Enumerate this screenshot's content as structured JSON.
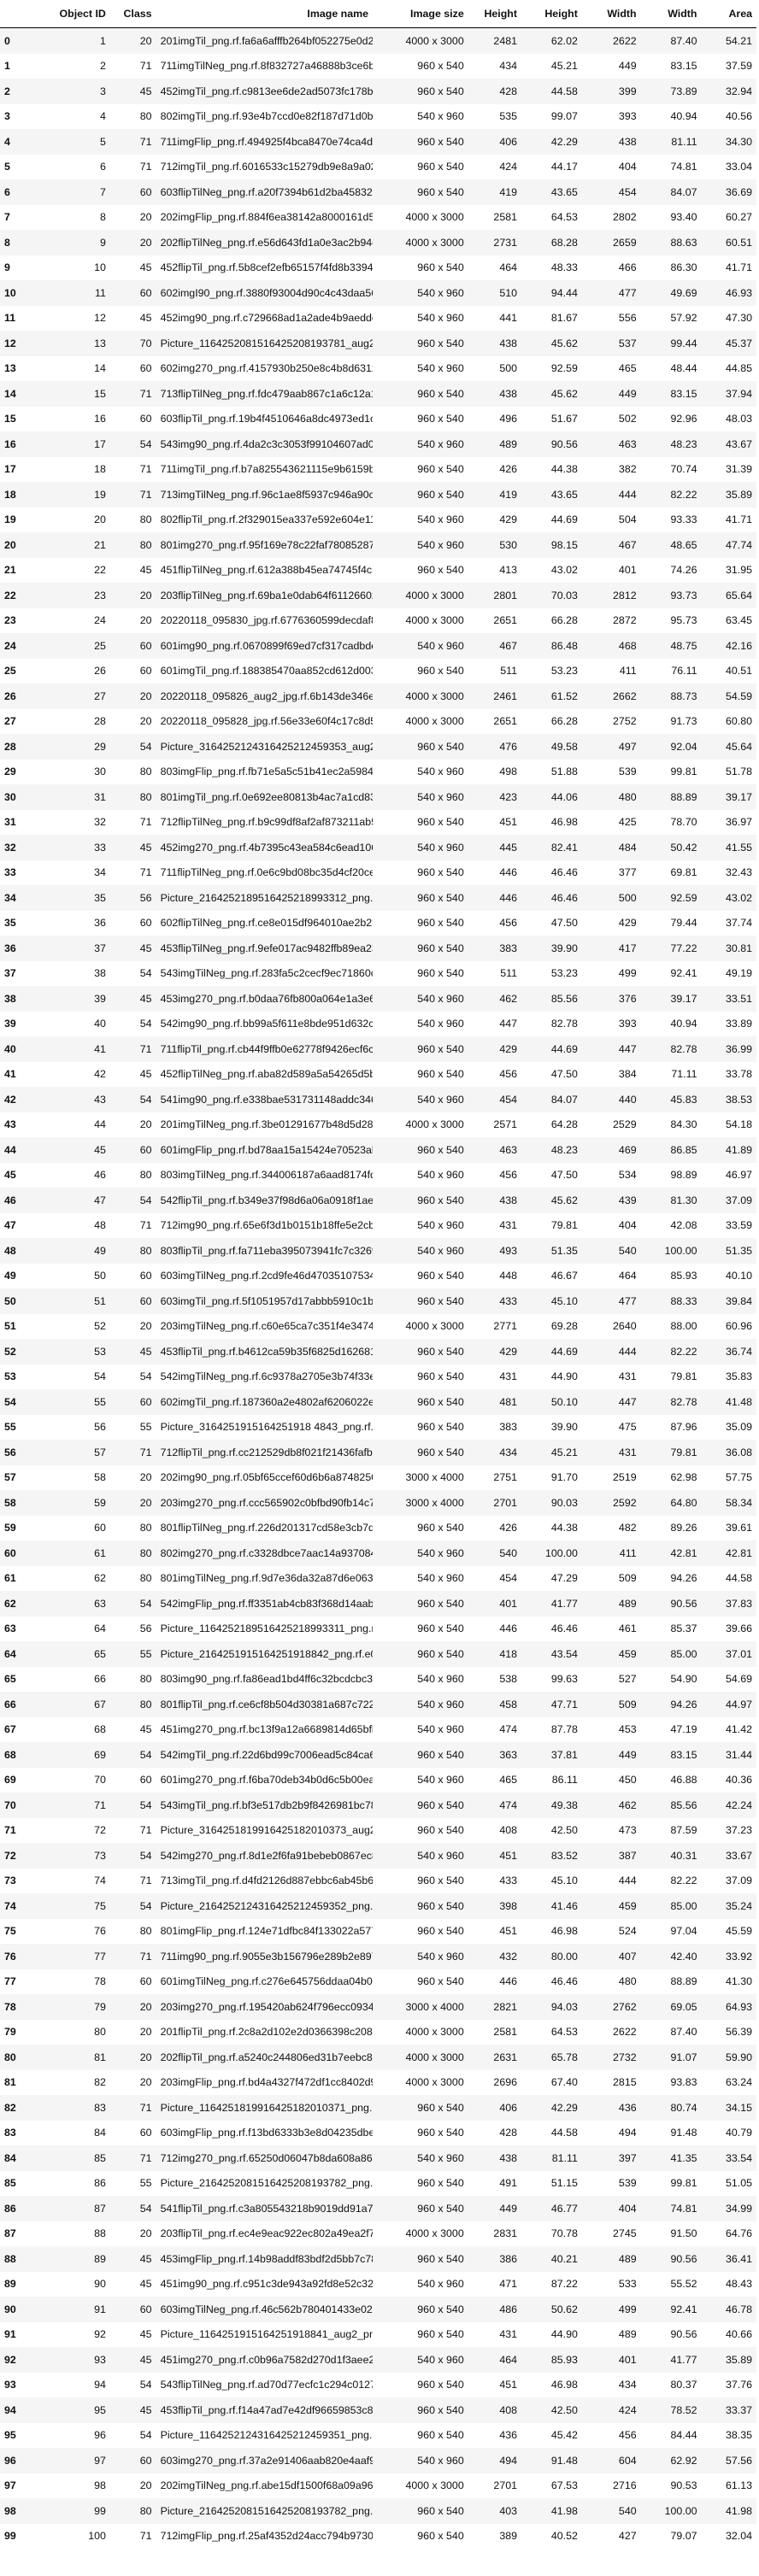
{
  "columns": [
    "",
    "Object ID",
    "Class",
    "Image name",
    "Image size",
    "Height",
    "Height",
    "Width",
    "Width",
    "Area"
  ],
  "rows": [
    [
      "0",
      "1",
      "20",
      "201imgTil_png.rf.fa6a6afffb264bf052275e0d2dc7e...",
      "4000 x 3000",
      "2481",
      "62.02",
      "2622",
      "87.40",
      "54.21"
    ],
    [
      "1",
      "2",
      "71",
      "711imgTilNeg_png.rf.8f832727a46888b3ce6b630f74...",
      "960 x 540",
      "434",
      "45.21",
      "449",
      "83.15",
      "37.59"
    ],
    [
      "2",
      "3",
      "45",
      "452imgTil_png.rf.c9813ee6de2ad5073fc178ba11ef2...",
      "960 x 540",
      "428",
      "44.58",
      "399",
      "73.89",
      "32.94"
    ],
    [
      "3",
      "4",
      "80",
      "802imgTil_png.rf.93e4b7ccd0e82f187d71d0b36b8dcb...",
      "540 x 960",
      "535",
      "99.07",
      "393",
      "40.94",
      "40.56"
    ],
    [
      "4",
      "5",
      "71",
      "711imgFlip_png.rf.494925f4bca8470e74ca4d7584df...",
      "960 x 540",
      "406",
      "42.29",
      "438",
      "81.11",
      "34.30"
    ],
    [
      "5",
      "6",
      "71",
      "712imgTil_png.rf.6016533c15279db9e8a9a02663d64...",
      "960 x 540",
      "424",
      "44.17",
      "404",
      "74.81",
      "33.04"
    ],
    [
      "6",
      "7",
      "60",
      "603flipTilNeg_png.rf.a20f7394b61d2ba4583211b10...",
      "960 x 540",
      "419",
      "43.65",
      "454",
      "84.07",
      "36.69"
    ],
    [
      "7",
      "8",
      "20",
      "202imgFlip_png.rf.884f6ea38142a8000161d50a963f...",
      "4000 x 3000",
      "2581",
      "64.53",
      "2802",
      "93.40",
      "60.27"
    ],
    [
      "8",
      "9",
      "20",
      "202flipTilNeg_png.rf.e56d643fd1a0e3ac2b94cf5a3...",
      "4000 x 3000",
      "2731",
      "68.28",
      "2659",
      "88.63",
      "60.51"
    ],
    [
      "9",
      "10",
      "45",
      "452flipTil_png.rf.5b8cef2efb65157f4fd8b3394e4c...",
      "960 x 540",
      "464",
      "48.33",
      "466",
      "86.30",
      "41.71"
    ],
    [
      "10",
      "11",
      "60",
      "602imgI90_png.rf.3880f93004d90c4c43daa568e23ad3...",
      "540 x 960",
      "510",
      "94.44",
      "477",
      "49.69",
      "46.93"
    ],
    [
      "11",
      "12",
      "45",
      "452img90_png.rf.c729668ad1a2ade4b9aedde653c778...",
      "540 x 960",
      "441",
      "81.67",
      "556",
      "57.92",
      "47.30"
    ],
    [
      "12",
      "13",
      "70",
      "Picture_1164252081516425208193781_aug2_png.rf...",
      "960 x 540",
      "438",
      "45.62",
      "537",
      "99.44",
      "45.37"
    ],
    [
      "13",
      "14",
      "60",
      "602img270_png.rf.4157930b250e8c4b8d63123147aaa...",
      "540 x 960",
      "500",
      "92.59",
      "465",
      "48.44",
      "44.85"
    ],
    [
      "14",
      "15",
      "71",
      "713flipTilNeg_png.rf.fdc479aab867c1a6c12a1f246...",
      "960 x 540",
      "438",
      "45.62",
      "449",
      "83.15",
      "37.94"
    ],
    [
      "15",
      "16",
      "60",
      "603flipTil_png.rf.19b4f4510646a8dc4973ed1c35eb...",
      "960 x 540",
      "496",
      "51.67",
      "502",
      "92.96",
      "48.03"
    ],
    [
      "16",
      "17",
      "54",
      "543img90_png.rf.4da2c3c3053f99104607ad0ed8f693...",
      "540 x 960",
      "489",
      "90.56",
      "463",
      "48.23",
      "43.67"
    ],
    [
      "17",
      "18",
      "71",
      "711imgTil_png.rf.b7a825543621115e9b6159b4021e4...",
      "960 x 540",
      "426",
      "44.38",
      "382",
      "70.74",
      "31.39"
    ],
    [
      "18",
      "19",
      "71",
      "713imgTilNeg_png.rf.96c1ae8f5937c946a90cf8d4b1...",
      "960 x 540",
      "419",
      "43.65",
      "444",
      "82.22",
      "35.89"
    ],
    [
      "19",
      "20",
      "80",
      "802flipTil_png.rf.2f329015ea337e592e604e11242f...",
      "540 x 960",
      "429",
      "44.69",
      "504",
      "93.33",
      "41.71"
    ],
    [
      "20",
      "21",
      "80",
      "801img270_png.rf.95f169e78c22faf780852870313c7...",
      "540 x 960",
      "530",
      "98.15",
      "467",
      "48.65",
      "47.74"
    ],
    [
      "21",
      "22",
      "45",
      "451flipTilNeg_png.rf.612a388b45ea74745f4cb5ea7...",
      "960 x 540",
      "413",
      "43.02",
      "401",
      "74.26",
      "31.95"
    ],
    [
      "22",
      "23",
      "20",
      "203flipTilNeg_png.rf.69ba1e0dab64f61126602e37f...",
      "4000 x 3000",
      "2801",
      "70.03",
      "2812",
      "93.73",
      "65.64"
    ],
    [
      "23",
      "24",
      "20",
      "20220118_095830_jpg.rf.6776360599decdaf8a1d0d7...",
      "4000 x 3000",
      "2651",
      "66.28",
      "2872",
      "95.73",
      "63.45"
    ],
    [
      "24",
      "25",
      "60",
      "601img90_png.rf.0670899f69ed7cf317cadbde6227fb...",
      "540 x 960",
      "467",
      "86.48",
      "468",
      "48.75",
      "42.16"
    ],
    [
      "25",
      "26",
      "60",
      "601imgTil_png.rf.188385470aa852cd612d003e22b14...",
      "960 x 540",
      "511",
      "53.23",
      "411",
      "76.11",
      "40.51"
    ],
    [
      "26",
      "27",
      "20",
      "20220118_095826_aug2_jpg.rf.6b143de346edc1e760...",
      "4000 x 3000",
      "2461",
      "61.52",
      "2662",
      "88.73",
      "54.59"
    ],
    [
      "27",
      "28",
      "20",
      "20220118_095828_jpg.rf.56e33e60f4c17c8d5fb4a0b...",
      "4000 x 3000",
      "2651",
      "66.28",
      "2752",
      "91.73",
      "60.80"
    ],
    [
      "28",
      "29",
      "54",
      "Picture_3164252124316425212459353_aug2_png.rf...",
      "960 x 540",
      "476",
      "49.58",
      "497",
      "92.04",
      "45.64"
    ],
    [
      "29",
      "30",
      "80",
      "803imgFlip_png.rf.fb71e5a5c51b41ec2a598403aedd...",
      "540 x 960",
      "498",
      "51.88",
      "539",
      "99.81",
      "51.78"
    ],
    [
      "30",
      "31",
      "80",
      "801imgTil_png.rf.0e692ee80813b4ac7a1cd8345b34e...",
      "540 x 960",
      "423",
      "44.06",
      "480",
      "88.89",
      "39.17"
    ],
    [
      "31",
      "32",
      "71",
      "712flipTilNeg_png.rf.b9c99df8af2af873211ab58fe...",
      "960 x 540",
      "451",
      "46.98",
      "425",
      "78.70",
      "36.97"
    ],
    [
      "32",
      "33",
      "45",
      "452img270_png.rf.4b7395c43ea584c6ead1069970eb0...",
      "540 x 960",
      "445",
      "82.41",
      "484",
      "50.42",
      "41.55"
    ],
    [
      "33",
      "34",
      "71",
      "711flipTilNeg_png.rf.0e6c9bd08bc35d4cf20ce439f...",
      "960 x 540",
      "446",
      "46.46",
      "377",
      "69.81",
      "32.43"
    ],
    [
      "34",
      "35",
      "56",
      "Picture_2164252189516425218993312_png.rf.24deb...",
      "960 x 540",
      "446",
      "46.46",
      "500",
      "92.59",
      "43.02"
    ],
    [
      "35",
      "36",
      "60",
      "602flipTilNeg_png.rf.ce8e015df964010ae2b2b354c...",
      "960 x 540",
      "456",
      "47.50",
      "429",
      "79.44",
      "37.74"
    ],
    [
      "36",
      "37",
      "45",
      "453flipTilNeg_png.rf.9efe017ac9482ffb89ea23494...",
      "960 x 540",
      "383",
      "39.90",
      "417",
      "77.22",
      "30.81"
    ],
    [
      "37",
      "38",
      "54",
      "543imgTilNeg_png.rf.283fa5c2cecf9ec71860c5a7ed...",
      "960 x 540",
      "511",
      "53.23",
      "499",
      "92.41",
      "49.19"
    ],
    [
      "38",
      "39",
      "45",
      "453img270_png.rf.b0daa76fb800a064e1a3e66be6503...",
      "540 x 960",
      "462",
      "85.56",
      "376",
      "39.17",
      "33.51"
    ],
    [
      "39",
      "40",
      "54",
      "542img90_png.rf.bb99a5f611e8bde951d632c9caf9e1...",
      "540 x 960",
      "447",
      "82.78",
      "393",
      "40.94",
      "33.89"
    ],
    [
      "40",
      "41",
      "71",
      "711flipTil_png.rf.cb44f9ffb0e62778f9426ecf6ce8...",
      "960 x 540",
      "429",
      "44.69",
      "447",
      "82.78",
      "36.99"
    ],
    [
      "41",
      "42",
      "45",
      "452flipTilNeg_png.rf.aba82d589a5a54265d5bbd2f9...",
      "960 x 540",
      "456",
      "47.50",
      "384",
      "71.11",
      "33.78"
    ],
    [
      "42",
      "43",
      "54",
      "541img90_png.rf.e338bae531731148addc346a11bc7e...",
      "540 x 960",
      "454",
      "84.07",
      "440",
      "45.83",
      "38.53"
    ],
    [
      "43",
      "44",
      "20",
      "201imgTilNeg_png.rf.3be01291677b48d5d282bcb85d...",
      "4000 x 3000",
      "2571",
      "64.28",
      "2529",
      "84.30",
      "54.18"
    ],
    [
      "44",
      "45",
      "60",
      "601imgFlip_png.rf.bd78aa15a15424e70523abc2dcbf...",
      "960 x 540",
      "463",
      "48.23",
      "469",
      "86.85",
      "41.89"
    ],
    [
      "45",
      "46",
      "80",
      "803imgTilNeg_png.rf.344006187a6aad8174fd45c2c7...",
      "540 x 960",
      "456",
      "47.50",
      "534",
      "98.89",
      "46.97"
    ],
    [
      "46",
      "47",
      "54",
      "542flipTil_png.rf.b349e37f98d6a06a0918f1aebcb...",
      "960 x 540",
      "438",
      "45.62",
      "439",
      "81.30",
      "37.09"
    ],
    [
      "47",
      "48",
      "71",
      "712img90_png.rf.65e6f3d1b0151b18ffe5e2cbf1071f...",
      "540 x 960",
      "431",
      "79.81",
      "404",
      "42.08",
      "33.59"
    ],
    [
      "48",
      "49",
      "80",
      "803flipTil_png.rf.fa711eba395073941fc7c3269496...",
      "540 x 960",
      "493",
      "51.35",
      "540",
      "100.00",
      "51.35"
    ],
    [
      "49",
      "50",
      "60",
      "603imgTilNeg_png.rf.2cd9fe46d4703510753422S279...",
      "960 x 540",
      "448",
      "46.67",
      "464",
      "85.93",
      "40.10"
    ],
    [
      "50",
      "51",
      "60",
      "603imgTil_png.rf.5f1051957d17abbb5910c1b8f4204...",
      "960 x 540",
      "433",
      "45.10",
      "477",
      "88.33",
      "39.84"
    ],
    [
      "51",
      "52",
      "20",
      "203imgTilNeg_png.rf.c60e65ca7c351f4e34745c8b2f...",
      "4000 x 3000",
      "2771",
      "69.28",
      "2640",
      "88.00",
      "60.96"
    ],
    [
      "52",
      "53",
      "45",
      "453flipTil_png.rf.b4612ca59b35f6825d1626815062...",
      "960 x 540",
      "429",
      "44.69",
      "444",
      "82.22",
      "36.74"
    ],
    [
      "53",
      "54",
      "54",
      "542imgTilNeg_png.rf.6c9378a2705e3b74f33e79d5089...",
      "960 x 540",
      "431",
      "44.90",
      "431",
      "79.81",
      "35.83"
    ],
    [
      "54",
      "55",
      "60",
      "602imgTil_png.rf.187360a2e4802af6206022e204fbf...",
      "960 x 540",
      "481",
      "50.10",
      "447",
      "82.78",
      "41.48"
    ],
    [
      "55",
      "56",
      "55",
      "Picture_3164251915164251918 4843_png.rf.90d10...",
      "960 x 540",
      "383",
      "39.90",
      "475",
      "87.96",
      "35.09"
    ],
    [
      "56",
      "57",
      "71",
      "712flipTil_png.rf.cc212529db8f021f21436fafbd02...",
      "960 x 540",
      "434",
      "45.21",
      "431",
      "79.81",
      "36.08"
    ],
    [
      "57",
      "58",
      "20",
      "202img90_png.rf.05bf65ccef60d6b6a874825033ec5c...",
      "3000 x 4000",
      "2751",
      "91.70",
      "2519",
      "62.98",
      "57.75"
    ],
    [
      "58",
      "59",
      "20",
      "203img270_png.rf.ccc565902c0bfbd90fb14c766f2ad...",
      "3000 x 4000",
      "2701",
      "90.03",
      "2592",
      "64.80",
      "58.34"
    ],
    [
      "59",
      "60",
      "80",
      "801flipTilNeg_png.rf.226d201317cd58e3cb7d27af1...",
      "960 x 540",
      "426",
      "44.38",
      "482",
      "89.26",
      "39.61"
    ],
    [
      "60",
      "61",
      "80",
      "802img270_png.rf.c3328dbce7aac14a937084cf481a8...",
      "540 x 960",
      "540",
      "100.00",
      "411",
      "42.81",
      "42.81"
    ],
    [
      "61",
      "62",
      "80",
      "801imgTilNeg_png.rf.9d7e36da32a87d6e06369bf651...",
      "540 x 960",
      "454",
      "47.29",
      "509",
      "94.26",
      "44.58"
    ],
    [
      "62",
      "63",
      "54",
      "542imgFlip_png.rf.ff3351ab4cb83f368d14aabf9e52...",
      "960 x 540",
      "401",
      "41.77",
      "489",
      "90.56",
      "37.83"
    ],
    [
      "63",
      "64",
      "56",
      "Picture_1164252189516425218993311_png.rf.b77e2...",
      "960 x 540",
      "446",
      "46.46",
      "461",
      "85.37",
      "39.66"
    ],
    [
      "64",
      "65",
      "55",
      "Picture_2164251915164251918842_png.rf.e07b8...",
      "960 x 540",
      "418",
      "43.54",
      "459",
      "85.00",
      "37.01"
    ],
    [
      "65",
      "66",
      "80",
      "803img90_png.rf.fa86ead1bd4ff6c32bcdcbc3cf69ae...",
      "540 x 960",
      "538",
      "99.63",
      "527",
      "54.90",
      "54.69"
    ],
    [
      "66",
      "67",
      "80",
      "801flipTil_png.rf.ce6cf8b504d30381a687c7221344...",
      "540 x 960",
      "458",
      "47.71",
      "509",
      "94.26",
      "44.97"
    ],
    [
      "67",
      "68",
      "45",
      "451img270_png.rf.bc13f9a12a6689814d65bfb3a8be0...",
      "540 x 960",
      "474",
      "87.78",
      "453",
      "47.19",
      "41.42"
    ],
    [
      "68",
      "69",
      "54",
      "542imgTil_png.rf.22d6bd99c7006ead5c84ca6497753...",
      "960 x 540",
      "363",
      "37.81",
      "449",
      "83.15",
      "31.44"
    ],
    [
      "69",
      "70",
      "60",
      "601img270_png.rf.f6ba70deb34b0d6c5b00eab826d00...",
      "540 x 960",
      "465",
      "86.11",
      "450",
      "46.88",
      "40.36"
    ],
    [
      "70",
      "71",
      "54",
      "543imgTil_png.rf.bf3e517db2b9f8426981bc78be0df...",
      "960 x 540",
      "474",
      "49.38",
      "462",
      "85.56",
      "42.24"
    ],
    [
      "71",
      "72",
      "71",
      "Picture_3164251819916425182010373_aug2_png.rf...",
      "960 x 540",
      "408",
      "42.50",
      "473",
      "87.59",
      "37.23"
    ],
    [
      "72",
      "73",
      "54",
      "542img270_png.rf.8d1e2f6fa91bebeb0867ec8eb95c2...",
      "540 x 960",
      "451",
      "83.52",
      "387",
      "40.31",
      "33.67"
    ],
    [
      "73",
      "74",
      "71",
      "713imgTil_png.rf.d4fd2126d887ebbc6ab45b61e3f9b...",
      "960 x 540",
      "433",
      "45.10",
      "444",
      "82.22",
      "37.09"
    ],
    [
      "74",
      "75",
      "54",
      "Picture_2164252124316425212459352_png.rf.9e7e8...",
      "960 x 540",
      "398",
      "41.46",
      "459",
      "85.00",
      "35.24"
    ],
    [
      "75",
      "76",
      "80",
      "801imgFlip_png.rf.124e71dfbc84f133022a57779af8...",
      "960 x 540",
      "451",
      "46.98",
      "524",
      "97.04",
      "45.59"
    ],
    [
      "76",
      "77",
      "71",
      "711img90_png.rf.9055e3b156796e289b2e8979aa8f1f...",
      "540 x 960",
      "432",
      "80.00",
      "407",
      "42.40",
      "33.92"
    ],
    [
      "77",
      "78",
      "60",
      "601imgTilNeg_png.rf.c276e645756ddaa04b0d088f30...",
      "960 x 540",
      "446",
      "46.46",
      "480",
      "88.89",
      "41.30"
    ],
    [
      "78",
      "79",
      "20",
      "203img270_png.rf.195420ab624f796ecc0934458594c...",
      "3000 x 4000",
      "2821",
      "94.03",
      "2762",
      "69.05",
      "64.93"
    ],
    [
      "79",
      "80",
      "20",
      "201flipTil_png.rf.2c8a2d102e2d0366398c208d61ea...",
      "4000 x 3000",
      "2581",
      "64.53",
      "2622",
      "87.40",
      "56.39"
    ],
    [
      "80",
      "81",
      "20",
      "202flipTil_png.rf.a5240c244806ed31b7eebc8fe2b3...",
      "4000 x 3000",
      "2631",
      "65.78",
      "2732",
      "91.07",
      "59.90"
    ],
    [
      "81",
      "82",
      "20",
      "203imgFlip_png.rf.bd4a4327f472df1cc8402d9e6e7f...",
      "4000 x 3000",
      "2696",
      "67.40",
      "2815",
      "93.83",
      "63.24"
    ],
    [
      "82",
      "83",
      "71",
      "Picture_1164251819916425182010371_png.rf.5aa7b...",
      "960 x 540",
      "406",
      "42.29",
      "436",
      "80.74",
      "34.15"
    ],
    [
      "83",
      "84",
      "60",
      "603imgFlip_png.rf.f13bd6333b3e8d04235dbe619f95...",
      "960 x 540",
      "428",
      "44.58",
      "494",
      "91.48",
      "40.79"
    ],
    [
      "84",
      "85",
      "71",
      "712img270_png.rf.65250d06047b8da608a86ccce a361...",
      "540 x 960",
      "438",
      "81.11",
      "397",
      "41.35",
      "33.54"
    ],
    [
      "85",
      "86",
      "55",
      "Picture_2164252081516425208193782_png.rf.2f9b7...",
      "960 x 540",
      "491",
      "51.15",
      "539",
      "99.81",
      "51.05"
    ],
    [
      "86",
      "87",
      "54",
      "541flipTil_png.rf.c3a805543218b9019dd91a7fd4f1...",
      "960 x 540",
      "449",
      "46.77",
      "404",
      "74.81",
      "34.99"
    ],
    [
      "87",
      "88",
      "20",
      "203flipTil_png.rf.ec4e9eac922ec802a49ea2f7bb88...",
      "4000 x 3000",
      "2831",
      "70.78",
      "2745",
      "91.50",
      "64.76"
    ],
    [
      "88",
      "89",
      "45",
      "453imgFlip_png.rf.14b98addf83bdf2d5bb7c78f3158...",
      "960 x 540",
      "386",
      "40.21",
      "489",
      "90.56",
      "36.41"
    ],
    [
      "89",
      "90",
      "45",
      "451img90_png.rf.c951c3de943a92fd8e52c32d6fd65e...",
      "540 x 960",
      "471",
      "87.22",
      "533",
      "55.52",
      "48.43"
    ],
    [
      "90",
      "91",
      "60",
      "603imgTilNeg_png.rf.46c562b780401433e029bb7ea5...",
      "960 x 540",
      "486",
      "50.62",
      "499",
      "92.41",
      "46.78"
    ],
    [
      "91",
      "92",
      "45",
      "Picture_1164251915164251918841_aug2_png.rf.e...",
      "960 x 540",
      "431",
      "44.90",
      "489",
      "90.56",
      "40.66"
    ],
    [
      "92",
      "93",
      "45",
      "451img270_png.rf.c0b96a7582d270d1f3aee29763f76...",
      "540 x 960",
      "464",
      "85.93",
      "401",
      "41.77",
      "35.89"
    ],
    [
      "93",
      "94",
      "54",
      "543flipTilNeg_png.rf.ad70d77ecfc1c294c0127048 1...",
      "960 x 540",
      "451",
      "46.98",
      "434",
      "80.37",
      "37.76"
    ],
    [
      "94",
      "95",
      "45",
      "453flipTil_png.rf.f14a47ad7e42df96659853c8e8f82...",
      "960 x 540",
      "408",
      "42.50",
      "424",
      "78.52",
      "33.37"
    ],
    [
      "95",
      "96",
      "54",
      "Picture_1164252124316425212459351_png.rf.22dba...",
      "960 x 540",
      "436",
      "45.42",
      "456",
      "84.44",
      "38.35"
    ],
    [
      "96",
      "97",
      "60",
      "603img270_png.rf.37a2e91406aab820e4aaf9b09c47d...",
      "540 x 960",
      "494",
      "91.48",
      "604",
      "62.92",
      "57.56"
    ],
    [
      "97",
      "98",
      "20",
      "202imgTilNeg_png.rf.abe15df1500f68a09a964470e1...",
      "4000 x 3000",
      "2701",
      "67.53",
      "2716",
      "90.53",
      "61.13"
    ],
    [
      "98",
      "99",
      "80",
      "Picture_2164252081516425208193782_png.rf.fe9fc...",
      "960 x 540",
      "403",
      "41.98",
      "540",
      "100.00",
      "41.98"
    ],
    [
      "99",
      "100",
      "71",
      "712imgFlip_png.rf.25af4352d24acc794b97308101c2...",
      "960 x 540",
      "389",
      "40.52",
      "427",
      "79.07",
      "32.04"
    ]
  ]
}
